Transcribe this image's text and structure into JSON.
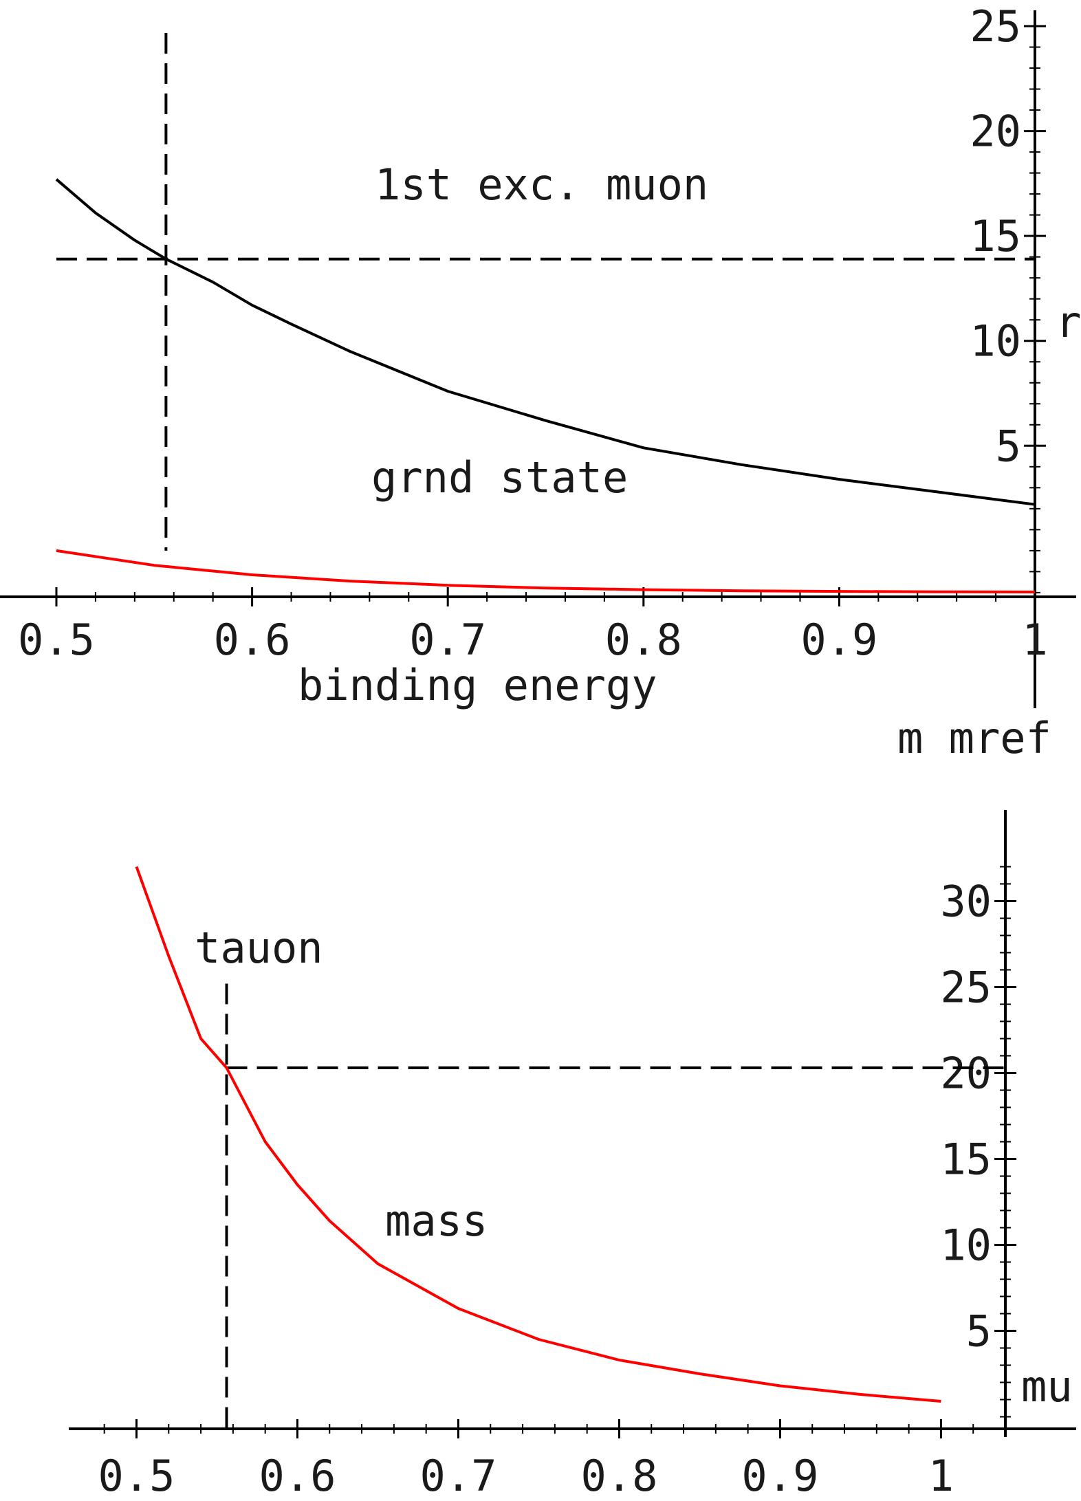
{
  "chart_data": [
    {
      "type": "line",
      "xlim": [
        0.5,
        1.0
      ],
      "ylim": [
        -2.2,
        25
      ],
      "x_ticks": [
        "0.5",
        "0.6",
        "0.7",
        "0.8",
        "0.9",
        "1"
      ],
      "x_tick_values": [
        0.5,
        0.6,
        0.7,
        0.8,
        0.9,
        1.0
      ],
      "y_ticks": [
        "5",
        "10",
        "15",
        "20",
        "25"
      ],
      "y_tick_values": [
        5,
        10,
        15,
        20,
        25
      ],
      "xlabel": "m  mref",
      "ylabel": "r",
      "grid": false,
      "annotations": {
        "excited": "1st  exc.  muon",
        "ground": "grnd  state",
        "binding": "binding   energy"
      },
      "series": [
        {
          "color": "#000000",
          "x": [
            0.5,
            0.52,
            0.54,
            0.556,
            0.58,
            0.6,
            0.62,
            0.65,
            0.7,
            0.75,
            0.8,
            0.85,
            0.9,
            0.95,
            1.0
          ],
          "y": [
            17.7,
            16.1,
            14.8,
            13.9,
            12.8,
            11.7,
            10.8,
            9.5,
            7.6,
            6.2,
            4.9,
            4.1,
            3.4,
            2.8,
            2.2
          ]
        },
        {
          "color": "#ff0000",
          "x": [
            0.5,
            0.55,
            0.6,
            0.65,
            0.7,
            0.75,
            0.8,
            0.85,
            0.9,
            0.95,
            1.0
          ],
          "y": [
            0.0,
            -0.7,
            -1.15,
            -1.45,
            -1.65,
            -1.78,
            -1.86,
            -1.91,
            -1.94,
            -1.96,
            -1.97
          ]
        }
      ],
      "reference_lines": {
        "x": 0.556,
        "y": 13.9
      }
    },
    {
      "type": "line",
      "xlim": [
        0.475,
        1.04
      ],
      "ylim": [
        -0.7,
        32.5
      ],
      "x_ticks": [
        "0.5",
        "0.6",
        "0.7",
        "0.8",
        "0.9",
        "1"
      ],
      "x_tick_values": [
        0.5,
        0.6,
        0.7,
        0.8,
        0.9,
        1.0
      ],
      "y_ticks": [
        "5",
        "10",
        "15",
        "20",
        "25",
        "30"
      ],
      "y_tick_values": [
        5,
        10,
        15,
        20,
        25,
        30
      ],
      "xlabel": "",
      "ylabel": "mu",
      "grid": false,
      "annotations": {
        "tauon": "tauon",
        "mass": "mass"
      },
      "series": [
        {
          "color": "#ff0000",
          "x": [
            0.5,
            0.52,
            0.54,
            0.556,
            0.58,
            0.6,
            0.62,
            0.65,
            0.7,
            0.75,
            0.8,
            0.85,
            0.9,
            0.95,
            1.0
          ],
          "y": [
            32.0,
            26.8,
            22.0,
            20.3,
            16.0,
            13.5,
            11.4,
            8.9,
            6.3,
            4.5,
            3.3,
            2.5,
            1.8,
            1.3,
            0.9
          ]
        }
      ],
      "reference_lines": {
        "x": 0.556,
        "y": 20.3
      }
    }
  ]
}
